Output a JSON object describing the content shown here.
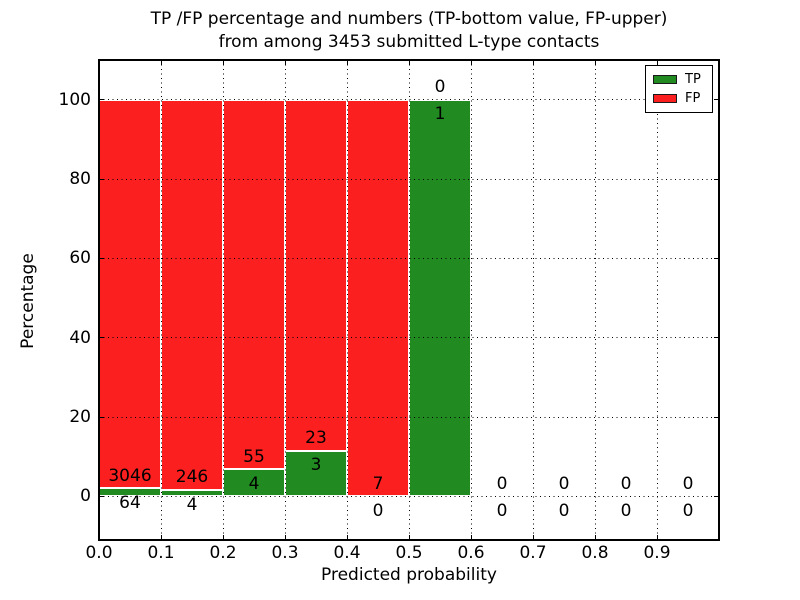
{
  "title": {
    "line1": "TP /FP percentage and numbers (TP-bottom value, FP-upper)",
    "line2": "from among 3453 submitted L-type contacts"
  },
  "axes": {
    "xlabel": "Predicted probability",
    "ylabel": "Percentage"
  },
  "legend": {
    "position": "upper right",
    "items": [
      {
        "label": "TP",
        "color": "#218b21"
      },
      {
        "label": "FP",
        "color": "#fb1f1f"
      }
    ]
  },
  "colors": {
    "tp": "#218b21",
    "fp": "#fb1f1f",
    "grid": "#000000",
    "frame": "#000000",
    "background": "#ffffff",
    "bar_edge": "#ffffff"
  },
  "chart_data": {
    "type": "bar",
    "stacked": true,
    "title": "TP /FP percentage and numbers (TP-bottom value, FP-upper) from among 3453 submitted L-type contacts",
    "xlabel": "Predicted probability",
    "ylabel": "Percentage",
    "xlim": [
      0.0,
      1.0
    ],
    "ylim": [
      -11,
      110
    ],
    "xticks": [
      "0.0",
      "0.1",
      "0.2",
      "0.3",
      "0.4",
      "0.5",
      "0.6",
      "0.7",
      "0.8",
      "0.9"
    ],
    "yticks": [
      0,
      20,
      40,
      60,
      80,
      100
    ],
    "grid": "dotted, drawn over bars",
    "legend_position": "upper right",
    "bin_width": 0.1,
    "annotation_rule": "FP count printed above green segment top, TP count printed below green segment top",
    "total_contacts": 3453,
    "bins": [
      {
        "x_start": 0.0,
        "tp_count": 64,
        "fp_count": 3046,
        "tp_pct": 2.06,
        "fp_pct": 97.94
      },
      {
        "x_start": 0.1,
        "tp_count": 4,
        "fp_count": 246,
        "tp_pct": 1.6,
        "fp_pct": 98.4
      },
      {
        "x_start": 0.2,
        "tp_count": 4,
        "fp_count": 55,
        "tp_pct": 6.78,
        "fp_pct": 93.22
      },
      {
        "x_start": 0.3,
        "tp_count": 3,
        "fp_count": 23,
        "tp_pct": 11.54,
        "fp_pct": 88.46
      },
      {
        "x_start": 0.4,
        "tp_count": 0,
        "fp_count": 7,
        "tp_pct": 0.0,
        "fp_pct": 100.0
      },
      {
        "x_start": 0.5,
        "tp_count": 1,
        "fp_count": 0,
        "tp_pct": 100.0,
        "fp_pct": 0.0
      },
      {
        "x_start": 0.6,
        "tp_count": 0,
        "fp_count": 0,
        "tp_pct": 0.0,
        "fp_pct": 0.0
      },
      {
        "x_start": 0.7,
        "tp_count": 0,
        "fp_count": 0,
        "tp_pct": 0.0,
        "fp_pct": 0.0
      },
      {
        "x_start": 0.8,
        "tp_count": 0,
        "fp_count": 0,
        "tp_pct": 0.0,
        "fp_pct": 0.0
      },
      {
        "x_start": 0.9,
        "tp_count": 0,
        "fp_count": 0,
        "tp_pct": 0.0,
        "fp_pct": 0.0
      }
    ]
  }
}
